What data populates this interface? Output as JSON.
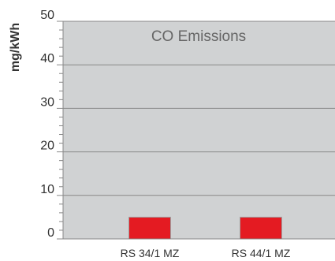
{
  "chart_data": {
    "type": "bar",
    "title": "CO Emissions",
    "xlabel": "",
    "ylabel": "mg/kWh",
    "categories": [
      "RS 34/1 MZ",
      "RS 44/1 MZ"
    ],
    "values": [
      5,
      5
    ],
    "ylim": [
      0,
      50
    ],
    "yticks": [
      0,
      10,
      20,
      30,
      40,
      50
    ],
    "yticks_minor_step": 2,
    "grid": true,
    "legend": "none",
    "colors": {
      "plot_background": "#d0d2d3",
      "bar_fill": "#e41b22",
      "bar_edge": "#a0a0a0",
      "gridline": "#888888",
      "axis": "#888888",
      "tick_text": "#333333",
      "title_text": "#666666"
    }
  }
}
